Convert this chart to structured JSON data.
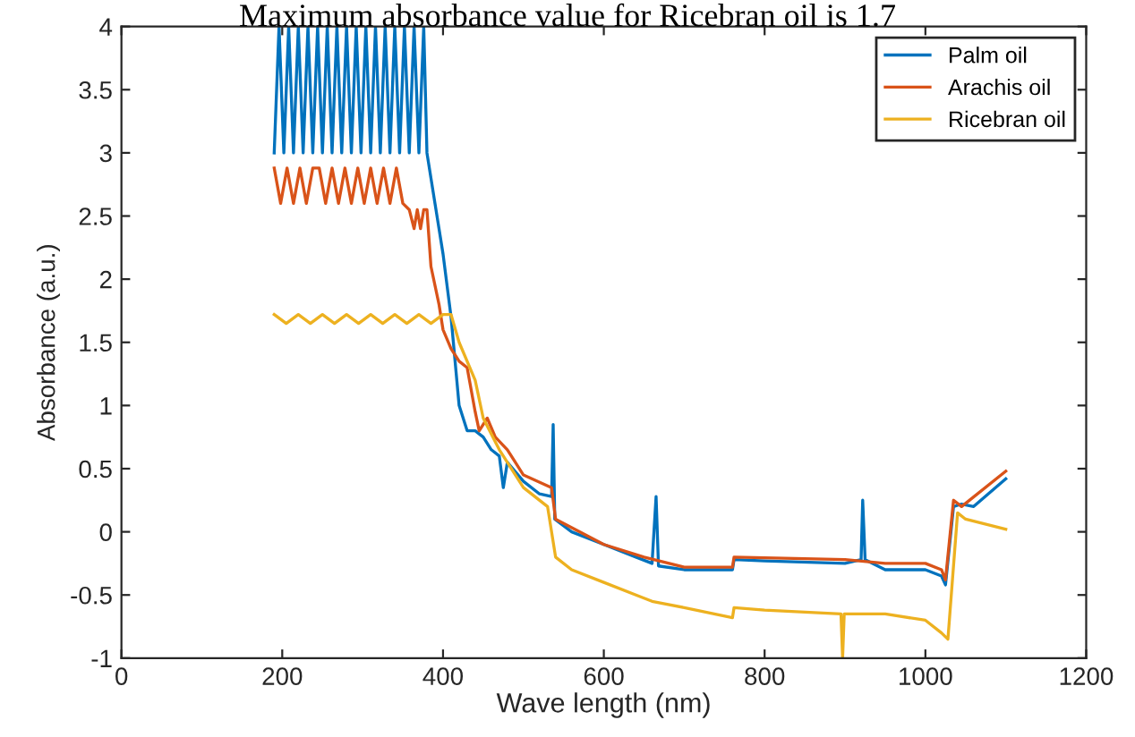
{
  "chart_data": {
    "type": "line",
    "title": "Maximum absorbance value for Ricebran oil is 1.7",
    "xlabel": "Wave length (nm)",
    "ylabel": "Absorbance (a.u.)",
    "xlim": [
      0,
      1200
    ],
    "ylim": [
      -1,
      4
    ],
    "xticks": [
      0,
      200,
      400,
      600,
      800,
      1000,
      1200
    ],
    "yticks": [
      -1,
      -0.5,
      0,
      0.5,
      1,
      1.5,
      2,
      2.5,
      3,
      3.5,
      4
    ],
    "grid": false,
    "legend": "top right",
    "marker": "none",
    "line_style": "solid",
    "series": [
      {
        "name": "Palm oil",
        "color": "#0072bd",
        "x": [
          190,
          196,
          202,
          208,
          214,
          220,
          226,
          232,
          238,
          244,
          250,
          256,
          262,
          268,
          274,
          280,
          286,
          292,
          298,
          304,
          310,
          316,
          322,
          328,
          334,
          340,
          346,
          352,
          358,
          364,
          370,
          376,
          380,
          390,
          400,
          410,
          420,
          430,
          440,
          450,
          460,
          470,
          475,
          480,
          500,
          520,
          535,
          537,
          539,
          560,
          600,
          640,
          660,
          665,
          668,
          700,
          760,
          762,
          800,
          900,
          920,
          922,
          925,
          950,
          1000,
          1020,
          1025,
          1035,
          1045,
          1060,
          1100
        ],
        "values": [
          3,
          4,
          3,
          4,
          3,
          4,
          3,
          4,
          3,
          4,
          3,
          4,
          3,
          4,
          3,
          4,
          3,
          4,
          3,
          4,
          3,
          4,
          3,
          4,
          3,
          4,
          3,
          4,
          3,
          4,
          3,
          4,
          3,
          2.6,
          2.2,
          1.7,
          1.0,
          0.8,
          0.8,
          0.75,
          0.65,
          0.6,
          0.35,
          0.55,
          0.4,
          0.3,
          0.28,
          0.85,
          0.1,
          0.0,
          -0.1,
          -0.2,
          -0.25,
          0.28,
          -0.27,
          -0.3,
          -0.3,
          -0.22,
          -0.23,
          -0.25,
          -0.22,
          0.25,
          -0.22,
          -0.3,
          -0.3,
          -0.35,
          -0.42,
          0.2,
          0.22,
          0.2,
          0.42
        ]
      },
      {
        "name": "Arachis oil",
        "color": "#d95319",
        "x": [
          190,
          198,
          206,
          214,
          222,
          230,
          238,
          246,
          254,
          262,
          270,
          278,
          286,
          294,
          302,
          310,
          318,
          326,
          334,
          342,
          350,
          358,
          364,
          368,
          372,
          376,
          380,
          385,
          395,
          400,
          410,
          420,
          430,
          440,
          445,
          455,
          465,
          480,
          500,
          535,
          540,
          600,
          650,
          700,
          760,
          762,
          900,
          950,
          1000,
          1020,
          1025,
          1035,
          1045,
          1100
        ],
        "values": [
          2.88,
          2.6,
          2.88,
          2.6,
          2.88,
          2.6,
          2.88,
          2.88,
          2.6,
          2.88,
          2.6,
          2.88,
          2.6,
          2.88,
          2.6,
          2.88,
          2.6,
          2.88,
          2.6,
          2.88,
          2.6,
          2.55,
          2.4,
          2.55,
          2.4,
          2.55,
          2.55,
          2.1,
          1.8,
          1.6,
          1.45,
          1.35,
          1.3,
          0.95,
          0.8,
          0.9,
          0.75,
          0.65,
          0.45,
          0.35,
          0.1,
          -0.1,
          -0.2,
          -0.28,
          -0.28,
          -0.2,
          -0.22,
          -0.25,
          -0.25,
          -0.3,
          -0.38,
          0.25,
          0.2,
          0.48
        ]
      },
      {
        "name": "Ricebran oil",
        "color": "#edb120",
        "x": [
          190,
          205,
          220,
          235,
          250,
          265,
          280,
          295,
          310,
          325,
          340,
          355,
          370,
          385,
          400,
          410,
          420,
          440,
          450,
          470,
          500,
          530,
          540,
          560,
          600,
          640,
          660,
          700,
          760,
          762,
          800,
          895,
          897,
          899,
          950,
          1000,
          1020,
          1028,
          1040,
          1050,
          1100
        ],
        "values": [
          1.72,
          1.65,
          1.72,
          1.65,
          1.72,
          1.65,
          1.72,
          1.65,
          1.72,
          1.65,
          1.72,
          1.65,
          1.72,
          1.65,
          1.72,
          1.72,
          1.5,
          1.2,
          0.9,
          0.65,
          0.35,
          0.2,
          -0.2,
          -0.3,
          -0.4,
          -0.5,
          -0.55,
          -0.6,
          -0.68,
          -0.6,
          -0.62,
          -0.65,
          -1,
          -0.65,
          -0.65,
          -0.7,
          -0.8,
          -0.85,
          0.15,
          0.1,
          0.02
        ]
      }
    ]
  }
}
